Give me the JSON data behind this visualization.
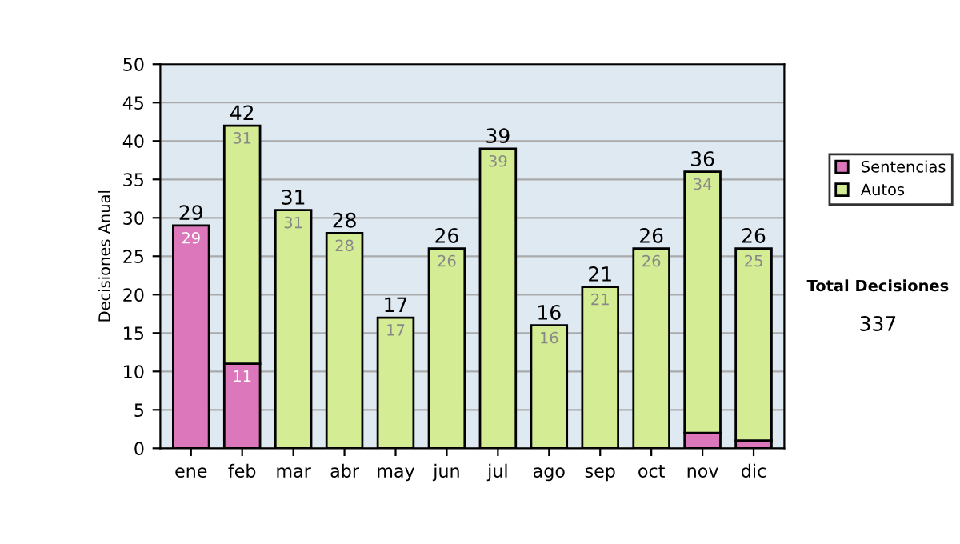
{
  "chart_data": {
    "type": "bar",
    "stacked": true,
    "ylabel": "Decisiones Anual",
    "categories": [
      "ene",
      "feb",
      "mar",
      "abr",
      "may",
      "jun",
      "jul",
      "ago",
      "sep",
      "oct",
      "nov",
      "dic"
    ],
    "series": [
      {
        "name": "Sentencias",
        "color": "#dd77bb",
        "values": [
          29,
          11,
          null,
          null,
          null,
          null,
          null,
          null,
          null,
          null,
          2,
          1
        ],
        "value_labels": [
          "29",
          "11",
          null,
          null,
          null,
          null,
          null,
          null,
          null,
          null,
          null,
          null
        ]
      },
      {
        "name": "Autos",
        "color": "#d4ec94",
        "values": [
          null,
          31,
          31,
          28,
          17,
          26,
          39,
          16,
          21,
          26,
          34,
          25
        ],
        "value_labels": [
          null,
          "31",
          "31",
          "28",
          "17",
          "26",
          "39",
          "16",
          "21",
          "26",
          "34",
          "25"
        ]
      }
    ],
    "totals": [
      "29",
      "42",
      "31",
      "28",
      "17",
      "26",
      "39",
      "16",
      "21",
      "26",
      "36",
      "26"
    ],
    "ylim": [
      0,
      50
    ],
    "yticks": [
      0,
      5,
      10,
      15,
      20,
      25,
      30,
      35,
      40,
      45,
      50
    ],
    "grid": "y",
    "legend": "right",
    "annotations": [
      "Total Decisiones",
      "337"
    ]
  }
}
